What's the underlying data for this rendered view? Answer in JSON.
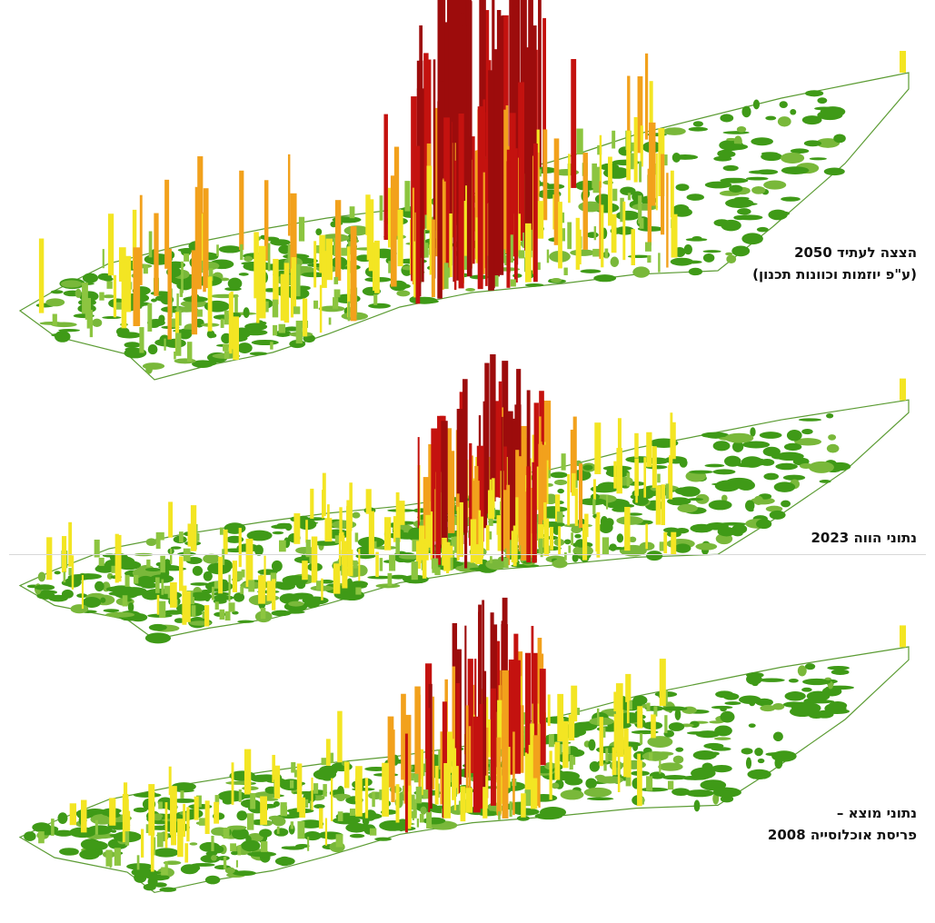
{
  "panels": [
    {
      "id": "projection",
      "caption_lines": [
        "הצצה לעתיד 2050",
        "(ע\"פ יוזמות וכוונות תכנון)"
      ]
    },
    {
      "id": "present",
      "caption_lines": [
        "נתוני הווה 2023"
      ]
    },
    {
      "id": "baseline",
      "caption_lines": [
        "נתוני מוצא –",
        "פריסת אוכלוסייה 2008"
      ]
    }
  ],
  "colors": {
    "boundary": "#5c9c34",
    "ground_dark": "#3f9a17",
    "ground_light": "#79b83a",
    "bar_green": "#8cc540",
    "bar_yellow": "#f3e523",
    "bar_orange": "#f2a11c",
    "bar_red": "#c4120f",
    "bar_darkred": "#9d0c0c"
  }
}
